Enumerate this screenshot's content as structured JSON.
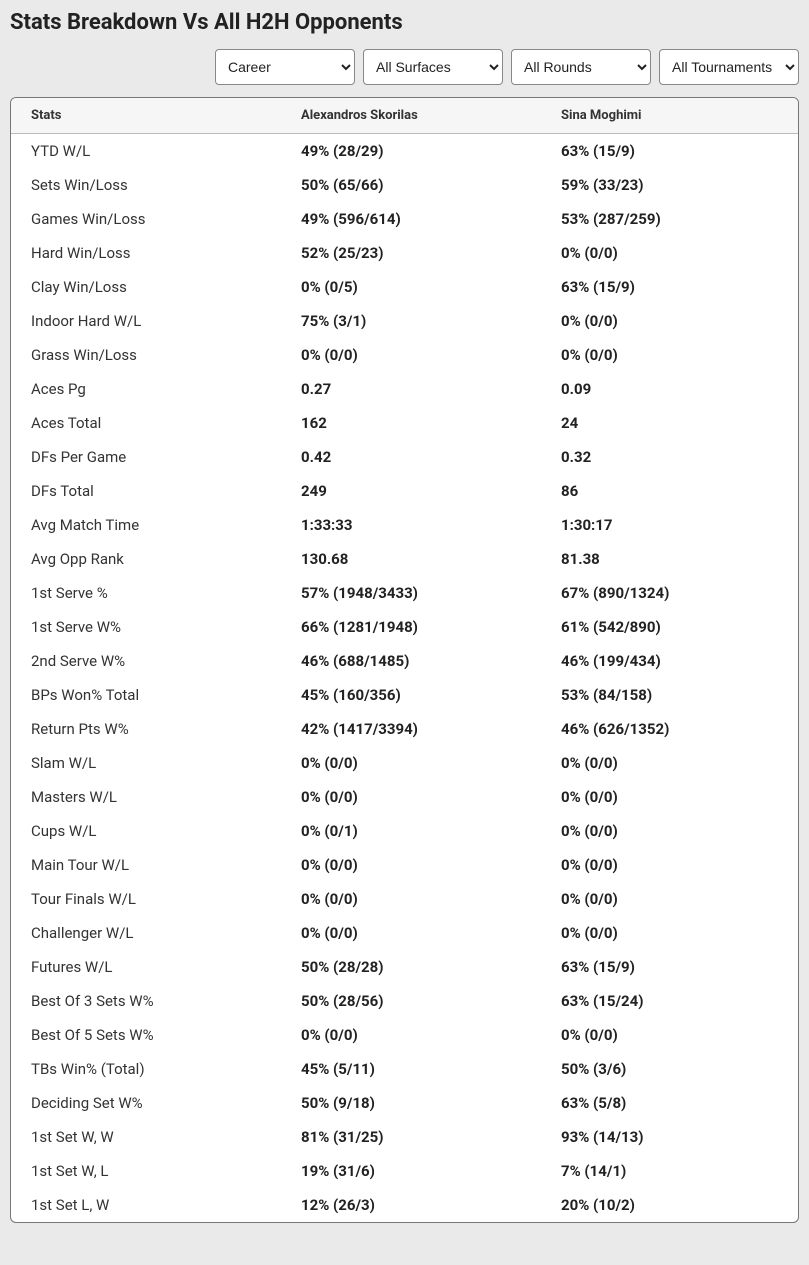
{
  "title": "Stats Breakdown Vs All H2H Opponents",
  "filters": {
    "period": {
      "selected": "Career",
      "options": [
        "Career"
      ]
    },
    "surface": {
      "selected": "All Surfaces",
      "options": [
        "All Surfaces"
      ]
    },
    "round": {
      "selected": "All Rounds",
      "options": [
        "All Rounds"
      ]
    },
    "tournament": {
      "selected": "All Tournaments",
      "options": [
        "All Tournaments"
      ]
    }
  },
  "columns": {
    "stat": "Stats",
    "player1": "Alexandros Skorilas",
    "player2": "Sina Moghimi"
  },
  "rows": [
    {
      "stat": "YTD W/L",
      "p1": "49% (28/29)",
      "p2": "63% (15/9)"
    },
    {
      "stat": "Sets Win/Loss",
      "p1": "50% (65/66)",
      "p2": "59% (33/23)"
    },
    {
      "stat": "Games Win/Loss",
      "p1": "49% (596/614)",
      "p2": "53% (287/259)"
    },
    {
      "stat": "Hard Win/Loss",
      "p1": "52% (25/23)",
      "p2": "0% (0/0)"
    },
    {
      "stat": "Clay Win/Loss",
      "p1": "0% (0/5)",
      "p2": "63% (15/9)"
    },
    {
      "stat": "Indoor Hard W/L",
      "p1": "75% (3/1)",
      "p2": "0% (0/0)"
    },
    {
      "stat": "Grass Win/Loss",
      "p1": "0% (0/0)",
      "p2": "0% (0/0)"
    },
    {
      "stat": "Aces Pg",
      "p1": "0.27",
      "p2": "0.09"
    },
    {
      "stat": "Aces Total",
      "p1": "162",
      "p2": "24"
    },
    {
      "stat": "DFs Per Game",
      "p1": "0.42",
      "p2": "0.32"
    },
    {
      "stat": "DFs Total",
      "p1": "249",
      "p2": "86"
    },
    {
      "stat": "Avg Match Time",
      "p1": "1:33:33",
      "p2": "1:30:17"
    },
    {
      "stat": "Avg Opp Rank",
      "p1": "130.68",
      "p2": "81.38"
    },
    {
      "stat": "1st Serve %",
      "p1": "57% (1948/3433)",
      "p2": "67% (890/1324)"
    },
    {
      "stat": "1st Serve W%",
      "p1": "66% (1281/1948)",
      "p2": "61% (542/890)"
    },
    {
      "stat": "2nd Serve W%",
      "p1": "46% (688/1485)",
      "p2": "46% (199/434)"
    },
    {
      "stat": "BPs Won% Total",
      "p1": "45% (160/356)",
      "p2": "53% (84/158)"
    },
    {
      "stat": "Return Pts W%",
      "p1": "42% (1417/3394)",
      "p2": "46% (626/1352)"
    },
    {
      "stat": "Slam W/L",
      "p1": "0% (0/0)",
      "p2": "0% (0/0)"
    },
    {
      "stat": "Masters W/L",
      "p1": "0% (0/0)",
      "p2": "0% (0/0)"
    },
    {
      "stat": "Cups W/L",
      "p1": "0% (0/1)",
      "p2": "0% (0/0)"
    },
    {
      "stat": "Main Tour W/L",
      "p1": "0% (0/0)",
      "p2": "0% (0/0)"
    },
    {
      "stat": "Tour Finals W/L",
      "p1": "0% (0/0)",
      "p2": "0% (0/0)"
    },
    {
      "stat": "Challenger W/L",
      "p1": "0% (0/0)",
      "p2": "0% (0/0)"
    },
    {
      "stat": "Futures W/L",
      "p1": "50% (28/28)",
      "p2": "63% (15/9)"
    },
    {
      "stat": "Best Of 3 Sets W%",
      "p1": "50% (28/56)",
      "p2": "63% (15/24)"
    },
    {
      "stat": "Best Of 5 Sets W%",
      "p1": "0% (0/0)",
      "p2": "0% (0/0)"
    },
    {
      "stat": "TBs Win% (Total)",
      "p1": "45% (5/11)",
      "p2": "50% (3/6)"
    },
    {
      "stat": "Deciding Set W%",
      "p1": "50% (9/18)",
      "p2": "63% (5/8)"
    },
    {
      "stat": "1st Set W, W",
      "p1": "81% (31/25)",
      "p2": "93% (14/13)"
    },
    {
      "stat": "1st Set W, L",
      "p1": "19% (31/6)",
      "p2": "7% (14/1)"
    },
    {
      "stat": "1st Set L, W",
      "p1": "12% (26/3)",
      "p2": "20% (10/2)"
    }
  ],
  "colors": {
    "page_bg": "#eaeaea",
    "card_bg": "#ffffff",
    "border": "#777777",
    "header_bg": "#f6f6f6",
    "text": "#222222"
  }
}
